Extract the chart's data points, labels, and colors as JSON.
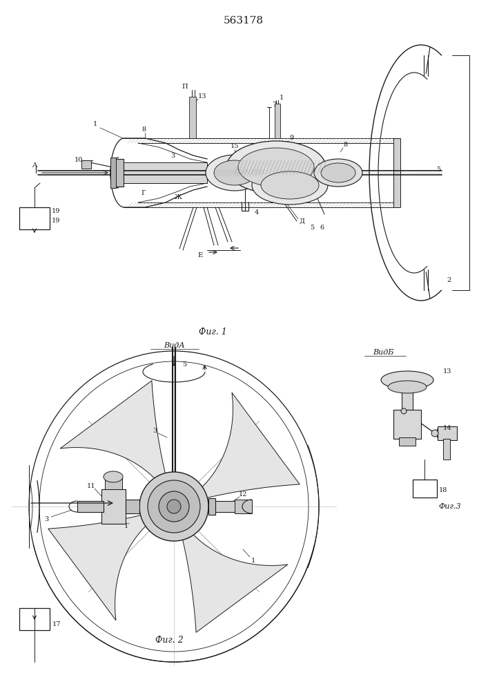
{
  "title": "563178",
  "fig1_label": "Фиг. 1",
  "fig2_label": "Фиг. 2",
  "vid_a_label": "ВидА",
  "vid_b_label": "ВидБ",
  "fig3_label": "Фиг.3",
  "bg_color": "#ffffff",
  "lc": "#1a1a1a",
  "lw": 0.7
}
